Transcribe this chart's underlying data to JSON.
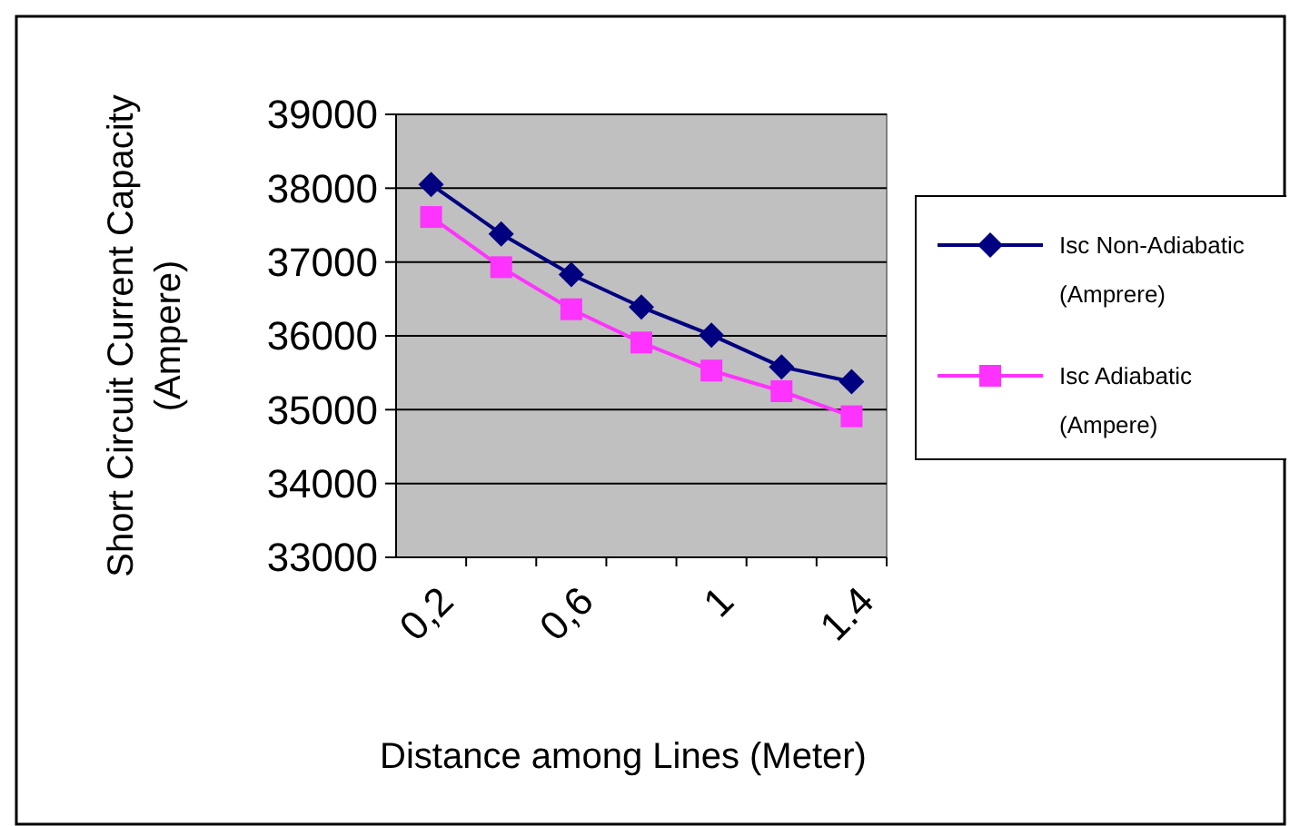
{
  "chart_data": {
    "type": "line",
    "xlabel": "Distance among Lines (Meter)",
    "ylabel": "Short Circuit Current Capacity (Ampere)",
    "categories": [
      "0,2",
      null,
      "0,6",
      null,
      "1",
      null,
      "1.4"
    ],
    "series": [
      {
        "name": "Isc Non-Adiabatic (Amprere)",
        "color": "#000080",
        "marker": "diamond",
        "values": [
          38050,
          37380,
          36830,
          36390,
          36010,
          35580,
          35380
        ]
      },
      {
        "name": "Isc Adiabatic (Ampere)",
        "color": "#ff33ff",
        "marker": "square",
        "values": [
          37610,
          36930,
          36360,
          35910,
          35530,
          35250,
          34910
        ]
      }
    ],
    "ylim": [
      33000,
      39000
    ],
    "yticks": [
      33000,
      34000,
      35000,
      36000,
      37000,
      38000,
      39000
    ],
    "grid": "y",
    "legend": "right"
  }
}
